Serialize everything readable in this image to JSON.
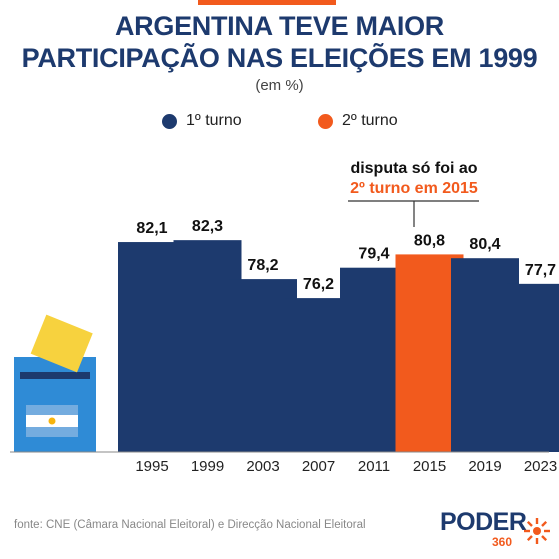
{
  "title": {
    "line1": "ARGENTINA TEVE MAIOR",
    "line2": "PARTICIPAÇÃO NAS ELEIÇÕES EM 1999"
  },
  "subtitle": "(em %)",
  "legend": {
    "first": {
      "label": "1º turno",
      "color": "#1d3a6e"
    },
    "second": {
      "label": "2º turno",
      "color": "#f25a1d"
    }
  },
  "annotation": {
    "line1": "disputa só foi ao",
    "line2": "2º turno em 2015"
  },
  "source": "fonte: CNE (Câmara Nacional Eleitoral) e Direcção Nacional Eleitoral",
  "logo": {
    "word": "PODER",
    "number": "360"
  },
  "chart_data": {
    "type": "bar",
    "categories": [
      "1995",
      "1999",
      "2003",
      "2007",
      "2011",
      "2015",
      "2019",
      "2023"
    ],
    "values": [
      82.1,
      82.3,
      78.2,
      76.2,
      79.4,
      80.8,
      80.4,
      77.7
    ],
    "value_labels": [
      "82,1",
      "82,3",
      "78,2",
      "76,2",
      "79,4",
      "80,8",
      "80,4",
      "77,7"
    ],
    "highlight": "2015",
    "ylim": [
      0,
      100
    ],
    "grid": false,
    "legend_position": "top"
  }
}
